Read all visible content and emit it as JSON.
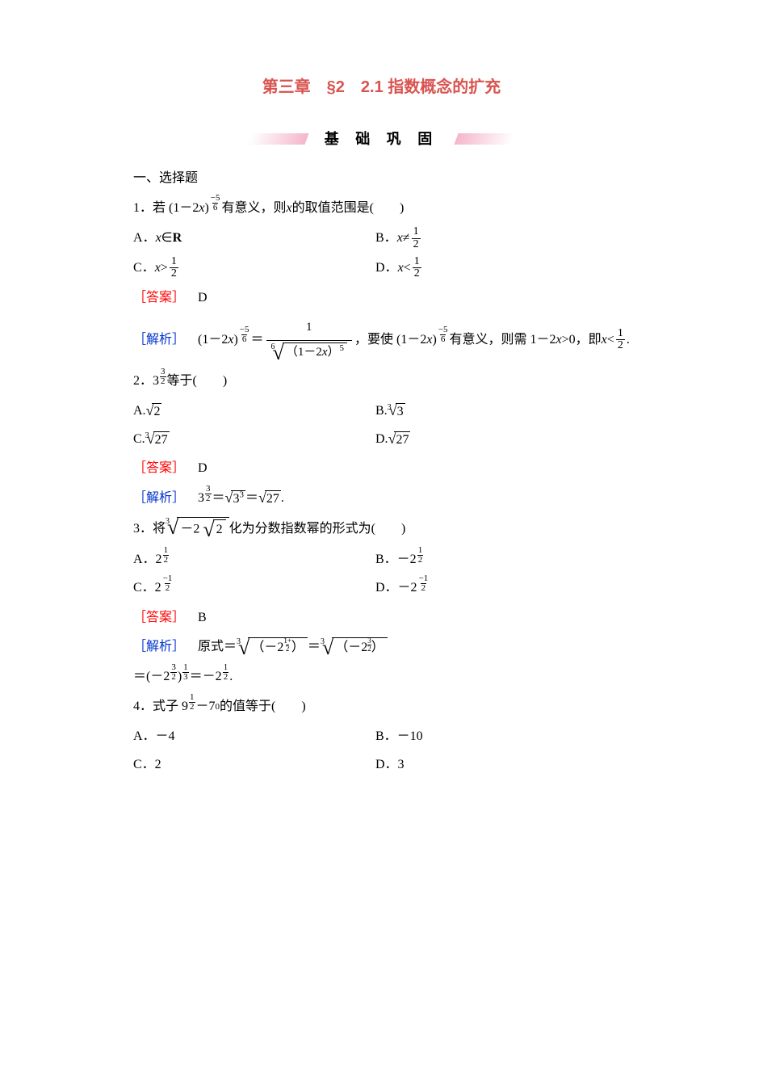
{
  "colors": {
    "title": "#d9534f",
    "answer": "#ff0000",
    "analysis": "#0033cc",
    "banner_bg": "#f4b6cc",
    "text": "#000000",
    "page_bg": "#ffffff"
  },
  "fonts": {
    "title_family": "SimHei",
    "body_family": "SimSun",
    "title_size_pt": 15,
    "body_size_pt": 12
  },
  "chapter_title": "第三章　§2　2.1 指数概念的扩充",
  "section_banner": "基 础 巩 固",
  "section_heading": "一、选择题",
  "labels": {
    "answer": "［答案］",
    "analysis": "［解析］"
  },
  "q1": {
    "num": "1．",
    "pre": "若 (1－2",
    "var": "x",
    "post1": ") ",
    "exp_sign": "−",
    "exp_num": "5",
    "exp_den": "6",
    "post2": " 有意义，则 ",
    "var2": "x",
    "post3": " 的取值范围是(　　)",
    "A_pre": "A．",
    "A_var": "x",
    "A_post": "∈",
    "A_set": "R",
    "B_pre": "B．",
    "B_var": "x",
    "B_rel": "≠",
    "B_num": "1",
    "B_den": "2",
    "C_pre": "C．",
    "C_var": "x",
    "C_rel": ">",
    "C_num": "1",
    "C_den": "2",
    "D_pre": "D．",
    "D_var": "x",
    "D_rel": "<",
    "D_num": "1",
    "D_den": "2",
    "answer": "　D",
    "ana_pre": "　(1－2",
    "ana_v": "x",
    "ana_p1": ") ",
    "ana_es": "−",
    "ana_en": "5",
    "ana_ed": "6",
    "ana_eq": " ＝ ",
    "bf_num": "1",
    "bf_deg": "6",
    "bf_in_pre": "（1－2",
    "bf_in_v": "x",
    "bf_in_post": "）",
    "bf_in_exp": "5",
    "ana_mid": "，要使 (1－2",
    "ana_v2": "x",
    "ana_p2": ") ",
    "ana_es2": "−",
    "ana_en2": "5",
    "ana_ed2": "6",
    "ana_mid2": " 有意义，则需 1－2",
    "ana_v3": "x",
    "ana_mid3": ">0，即 ",
    "ana_v4": "x",
    "ana_rel": "<",
    "ana_fn": "1",
    "ana_fd": "2",
    "ana_end": "."
  },
  "q2": {
    "num": "2．",
    "base": "3",
    "en": "3",
    "ed": "2",
    "post": " 等于(　　)",
    "A": "A.",
    "A_body": "2",
    "B": "B.",
    "B_deg": "3",
    "B_body": "3",
    "C": "C.",
    "C_deg": "3",
    "C_body": "27",
    "D": "D.",
    "D_body": "27",
    "answer": "　D",
    "ana_pre": "　3",
    "ana_en": "3",
    "ana_ed": "2",
    "ana_eq1": " ＝",
    "ana_s1_body": "3",
    "ana_s1_exp": "3",
    "ana_eq2": "＝",
    "ana_s2_body": "27",
    "ana_end": "."
  },
  "q3": {
    "num": "3．",
    "pre": "将",
    "deg": "3",
    "in_pre": "－2",
    "in_body": "2",
    "post": "化为分数指数幂的形式为(　　)",
    "A": "A．2",
    "A_en": "1",
    "A_ed": "2",
    "B": "B．－2",
    "B_en": "1",
    "B_ed": "2",
    "C": "C．2",
    "C_sign": "−",
    "C_en": "1",
    "C_ed": "2",
    "D": "D．－2",
    "D_sign": "−",
    "D_en": "1",
    "D_ed": "2",
    "answer": "　B",
    "ana_pre": "　原式＝",
    "s1_deg": "3",
    "s1_pre": "（－2",
    "s1_tn1": "1+",
    "s1_tn2": "1",
    "s1_td": "2",
    "s1_post": "）",
    "eq1": "＝",
    "s2_deg": "3",
    "s2_pre": "（－2",
    "s2_tn": "3",
    "s2_td": "2",
    "s2_post": "）",
    "line2_pre": "＝(－2",
    "l2_en": "3",
    "l2_ed": "2",
    "l2_mid": " )",
    "l2_on": "1",
    "l2_od": "3",
    "l2_eq": " ＝－2",
    "l2_rn": "1",
    "l2_rd": "2",
    "l2_end": " ."
  },
  "q4": {
    "num": "4．",
    "pre": "式子 9",
    "en": "1",
    "ed": "2",
    "mid": " －7",
    "exp0": "0",
    "post": "的值等于(　　)",
    "A": "A．－4",
    "B": "B．－10",
    "C": "C．2",
    "D": "D．3"
  }
}
